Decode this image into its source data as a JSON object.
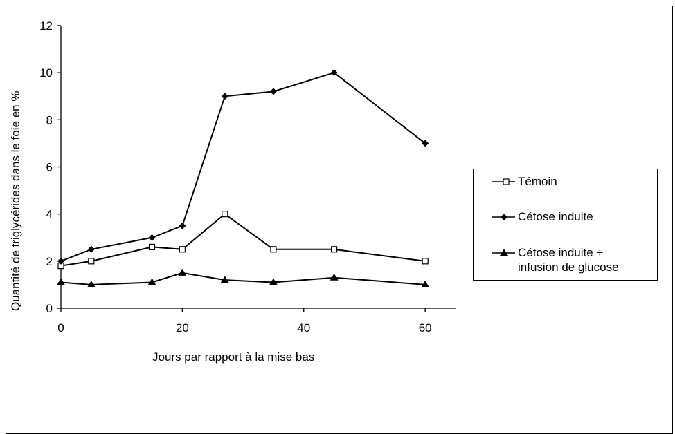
{
  "chart_data": {
    "type": "line",
    "xlabel": "Jours par rapport à la mise bas",
    "ylabel": "Quantité de triglycérides dans le foie en %",
    "xlim": [
      0,
      65
    ],
    "ylim": [
      0,
      12
    ],
    "x_ticks": [
      0,
      20,
      40,
      60
    ],
    "y_ticks": [
      0,
      2,
      4,
      6,
      8,
      10,
      12
    ],
    "grid": false,
    "legend_position": "right",
    "series": [
      {
        "name": "Témoin",
        "marker": "open-square",
        "color": "#000000",
        "x": [
          0,
          5,
          15,
          20,
          27,
          35,
          45,
          60
        ],
        "y": [
          1.8,
          2.0,
          2.6,
          2.5,
          4.0,
          2.5,
          2.5,
          2.0
        ]
      },
      {
        "name": "Cétose induite",
        "marker": "filled-diamond",
        "color": "#000000",
        "x": [
          0,
          5,
          15,
          20,
          27,
          35,
          45,
          60
        ],
        "y": [
          2.0,
          2.5,
          3.0,
          3.5,
          9.0,
          9.2,
          10.0,
          7.0
        ]
      },
      {
        "name_lines": [
          "Cétose induite +",
          "infusion de glucose"
        ],
        "marker": "filled-triangle",
        "color": "#000000",
        "x": [
          0,
          5,
          15,
          20,
          27,
          35,
          45,
          60
        ],
        "y": [
          1.1,
          1.0,
          1.1,
          1.5,
          1.2,
          1.1,
          1.3,
          1.0
        ]
      }
    ]
  },
  "legend": {
    "item1": "Témoin",
    "item2": "Cétose induite",
    "item3_line1": "Cétose induite +",
    "item3_line2": "infusion de glucose"
  }
}
